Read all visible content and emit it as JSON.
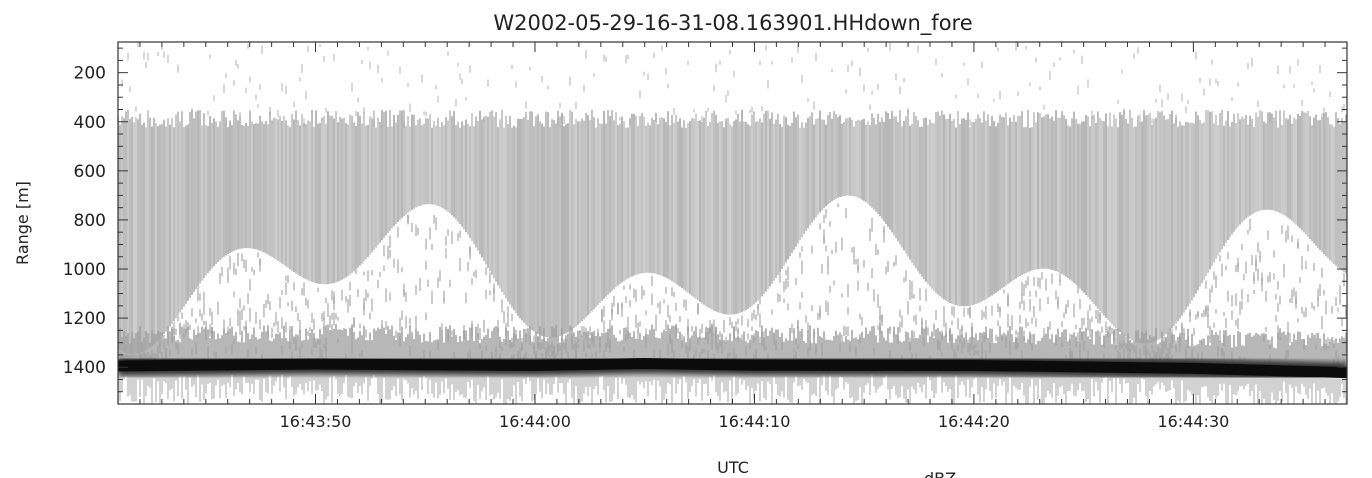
{
  "chart_data": {
    "type": "heatmap",
    "title": "W2002-05-29-16-31-08.163901.HHdown_fore",
    "xlabel": "UTC",
    "ylabel": "Range [m]",
    "colorbar_label": "dBZ",
    "x_range": [
      "16:43:41",
      "16:44:37"
    ],
    "x_ticks": [
      "16:43:50",
      "16:44:00",
      "16:44:10",
      "16:44:20",
      "16:44:30"
    ],
    "ylim": [
      1550,
      75
    ],
    "y_ticks": [
      200,
      400,
      600,
      800,
      1000,
      1200,
      1400
    ],
    "y_inverted": true,
    "colormap": "grayscale (white = weak, black = strong)",
    "features": {
      "surface_return": {
        "description": "strong black echo band",
        "range_m": [
          1380,
          1430
        ],
        "points": [
          {
            "time": "16:43:41",
            "range": 1395
          },
          {
            "time": "16:43:50",
            "range": 1387
          },
          {
            "time": "16:44:00",
            "range": 1393
          },
          {
            "time": "16:44:05",
            "range": 1385
          },
          {
            "time": "16:44:10",
            "range": 1392
          },
          {
            "time": "16:44:20",
            "range": 1393
          },
          {
            "time": "16:44:30",
            "range": 1405
          },
          {
            "time": "16:44:37",
            "range": 1422
          }
        ]
      },
      "echo_layer": {
        "description": "gray scattering layer",
        "top_range_m": 400,
        "bottom_range_m_min": 700,
        "bottom_range_m_max": 1350
      }
    },
    "grid": false,
    "legend": "none"
  }
}
